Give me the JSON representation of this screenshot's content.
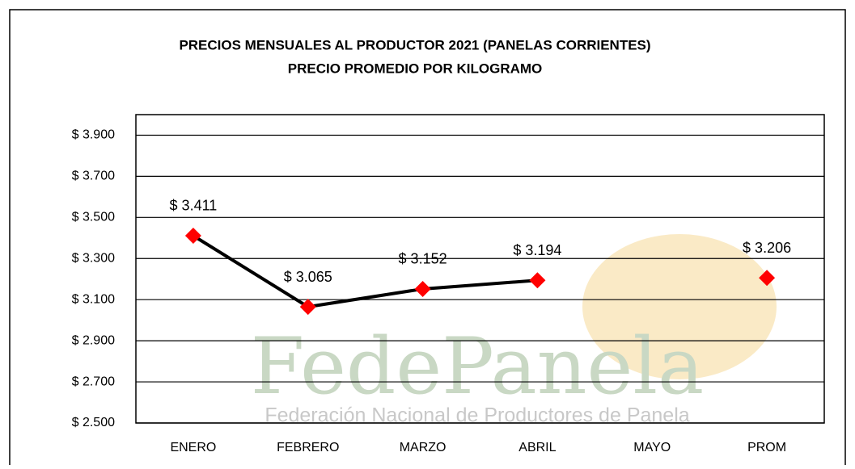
{
  "chart_data": {
    "type": "line",
    "title": "PRECIOS MENSUALES AL PRODUCTOR 2021 (PANELAS CORRIENTES)",
    "subtitle": "PRECIO PROMEDIO POR KILOGRAMO",
    "categories": [
      "ENERO",
      "FEBRERO",
      "MARZO",
      "ABRIL",
      "MAYO",
      "PROM"
    ],
    "series": [
      {
        "color": "#000000",
        "marker_color": "#ff0000",
        "values": [
          3411,
          3065,
          3152,
          3194,
          null,
          3206
        ],
        "value_labels": [
          "$ 3.411",
          "$ 3.065",
          "$ 3.152",
          "$ 3.194",
          null,
          "$ 3.206"
        ]
      }
    ],
    "ylim": [
      2500,
      4000
    ],
    "yticks": [
      {
        "value": 2500,
        "label": "$ 2.500"
      },
      {
        "value": 2700,
        "label": "$ 2.700"
      },
      {
        "value": 2900,
        "label": "$ 2.900"
      },
      {
        "value": 3100,
        "label": "$ 3.100"
      },
      {
        "value": 3300,
        "label": "$ 3.300"
      },
      {
        "value": 3500,
        "label": "$ 3.500"
      },
      {
        "value": 3700,
        "label": "$ 3.700"
      },
      {
        "value": 3900,
        "label": "$ 3.900"
      }
    ],
    "grid": true,
    "annotations": [
      "FedePanela",
      "Federación Nacional de Productores de Panela"
    ]
  }
}
